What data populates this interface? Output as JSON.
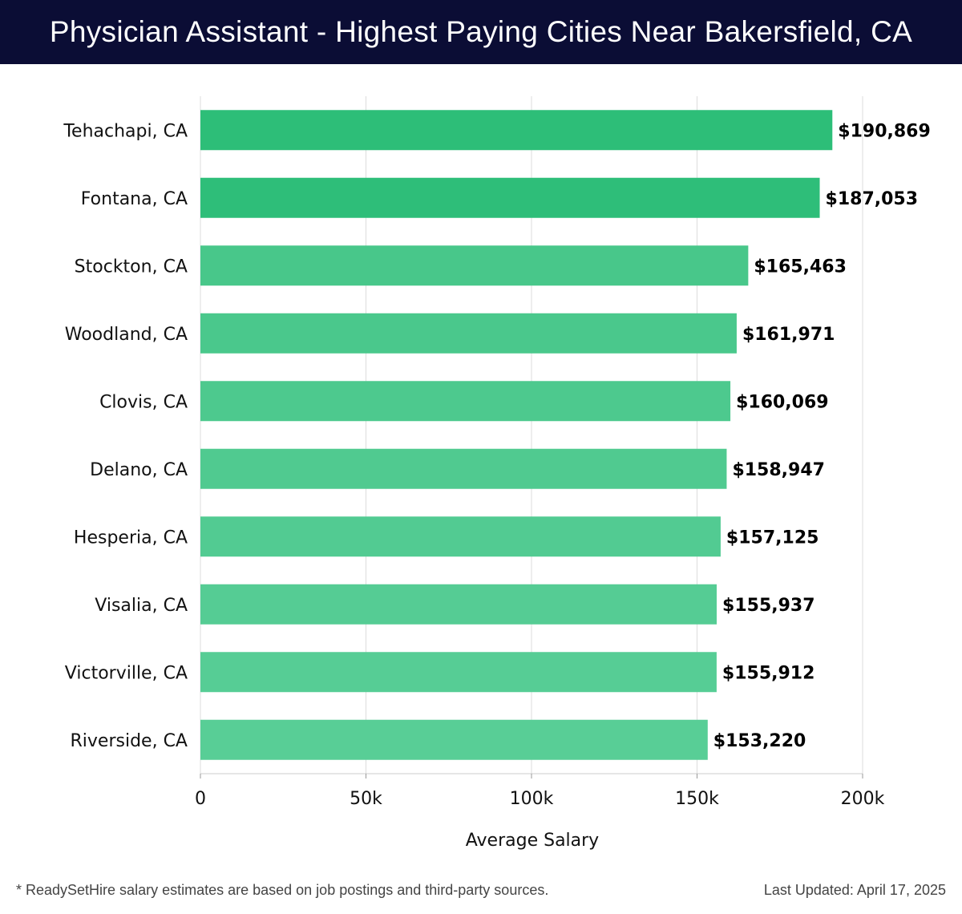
{
  "chart_data": {
    "type": "bar",
    "orientation": "horizontal",
    "title": "Physician Assistant - Highest Paying Cities Near Bakersfield, CA",
    "categories": [
      "Tehachapi, CA",
      "Fontana, CA",
      "Stockton, CA",
      "Woodland, CA",
      "Clovis, CA",
      "Delano, CA",
      "Hesperia, CA",
      "Visalia, CA",
      "Victorville, CA",
      "Riverside, CA"
    ],
    "values": [
      190869,
      187053,
      165463,
      161971,
      160069,
      158947,
      157125,
      155937,
      155912,
      153220
    ],
    "value_labels": [
      "$190,869",
      "$187,053",
      "$165,463",
      "$161,971",
      "$160,069",
      "$158,947",
      "$157,125",
      "$155,937",
      "$155,912",
      "$153,220"
    ],
    "colors": [
      "#2dbe78",
      "#2ebe79",
      "#48c78a",
      "#4ac88c",
      "#4dc98e",
      "#50ca90",
      "#52cb92",
      "#55cc94",
      "#56cd95",
      "#58ce96"
    ],
    "xlabel": "Average Salary",
    "ylabel": "",
    "xlim": [
      0,
      200000
    ],
    "xticks": [
      0,
      50000,
      100000,
      150000,
      200000
    ],
    "xtick_labels": [
      "0",
      "50k",
      "100k",
      "150k",
      "200k"
    ],
    "grid": true
  },
  "footer": {
    "note": "* ReadySetHire salary estimates are based on job postings and third-party sources.",
    "updated": "Last Updated: April 17, 2025"
  }
}
